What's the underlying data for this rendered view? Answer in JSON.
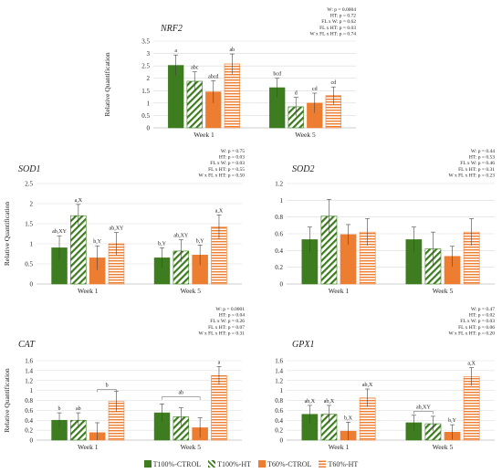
{
  "legend": [
    {
      "name": "T100%-CTROL",
      "color": "#3d7d1f",
      "pattern": "solid"
    },
    {
      "name": "T100%-HT",
      "color": "#3d7d1f",
      "pattern": "diagonal"
    },
    {
      "name": "T60%-CTROL",
      "color": "#ed7d31",
      "pattern": "solid"
    },
    {
      "name": "T60%-HT",
      "color": "#ed7d31",
      "pattern": "horizontal"
    }
  ],
  "chart_data": [
    {
      "type": "bar",
      "title": "NRF2",
      "ylabel": "Relative Quantification",
      "categories": [
        "Week 1",
        "Week 5"
      ],
      "ylim": [
        0,
        3.5
      ],
      "yticks": [
        "0",
        "0.5",
        "1",
        "1.5",
        "2",
        "2.5",
        "3",
        "3.5"
      ],
      "series": [
        {
          "name": "T100%-CTROL",
          "values": [
            2.52,
            1.62
          ],
          "errors": [
            0.42,
            0.38
          ],
          "labels": [
            "a",
            "bcd"
          ]
        },
        {
          "name": "T100%-HT",
          "values": [
            1.88,
            0.85
          ],
          "errors": [
            0.38,
            0.38
          ],
          "labels": [
            "abc",
            "d"
          ]
        },
        {
          "name": "T60%-CTROL",
          "values": [
            1.45,
            1.0
          ],
          "errors": [
            0.45,
            0.4
          ],
          "labels": [
            "abcd",
            "cd"
          ]
        },
        {
          "name": "T60%-HT",
          "values": [
            2.58,
            1.3
          ],
          "errors": [
            0.4,
            0.35
          ],
          "labels": [
            "ab",
            "cd"
          ]
        }
      ],
      "stats": [
        "W: p = 0.0004",
        "HT: p = 0.72",
        "FL x W: p = 0.62",
        "FL x HT: p = 0.03",
        "W x FL x HT: p = 0.74"
      ],
      "brackets": []
    },
    {
      "type": "bar",
      "title": "SOD1",
      "ylabel": "Relative Quantification",
      "categories": [
        "Week 1",
        "Week 5"
      ],
      "ylim": [
        0,
        2.5
      ],
      "yticks": [
        "0",
        "0.5",
        "1",
        "1.5",
        "2",
        "2.5"
      ],
      "series": [
        {
          "name": "T100%-CTROL",
          "values": [
            0.9,
            0.65
          ],
          "errors": [
            0.3,
            0.25
          ],
          "labels": [
            "ab,XY",
            "b,Y"
          ]
        },
        {
          "name": "T100%-HT",
          "values": [
            1.7,
            0.82
          ],
          "errors": [
            0.28,
            0.28
          ],
          "labels": [
            "a,X",
            "ab,XY"
          ]
        },
        {
          "name": "T60%-CTROL",
          "values": [
            0.65,
            0.72
          ],
          "errors": [
            0.3,
            0.25
          ],
          "labels": [
            "b,Y",
            "b,Y"
          ]
        },
        {
          "name": "T60%-HT",
          "values": [
            1.0,
            1.42
          ],
          "errors": [
            0.28,
            0.3
          ],
          "labels": [
            "ab,XY",
            "a,X"
          ]
        }
      ],
      "stats": [
        "W: p = 0.75",
        "HT: p = 0.03",
        "FL x W: p = 0.03",
        "FL x HT: p = 0.55",
        "W x FL x HT: p = 0.50"
      ],
      "brackets": []
    },
    {
      "type": "bar",
      "title": "SOD2",
      "ylabel": "",
      "categories": [
        "Week 1",
        "Week 5"
      ],
      "ylim": [
        0,
        1.2
      ],
      "yticks": [
        "0",
        "0.2",
        "0.4",
        "0.6",
        "0.8",
        "1",
        "1.2"
      ],
      "series": [
        {
          "name": "T100%-CTROL",
          "values": [
            0.53,
            0.53
          ],
          "errors": [
            0.15,
            0.15
          ],
          "labels": [
            "",
            ""
          ]
        },
        {
          "name": "T100%-HT",
          "values": [
            0.81,
            0.42
          ],
          "errors": [
            0.2,
            0.2
          ],
          "labels": [
            "",
            ""
          ]
        },
        {
          "name": "T60%-CTROL",
          "values": [
            0.59,
            0.33
          ],
          "errors": [
            0.12,
            0.12
          ],
          "labels": [
            "",
            ""
          ]
        },
        {
          "name": "T60%-HT",
          "values": [
            0.62,
            0.62
          ],
          "errors": [
            0.16,
            0.16
          ],
          "labels": [
            "",
            ""
          ]
        }
      ],
      "stats": [
        "W: p = 0.44",
        "HT: p = 0.53",
        "FL x W: p = 0.46",
        "FL x HT: p = 0.31",
        "W x FL x HT: p = 0.23"
      ],
      "brackets": []
    },
    {
      "type": "bar",
      "title": "CAT",
      "ylabel": "Relative Quantification",
      "categories": [
        "Week 1",
        "Week 5"
      ],
      "ylim": [
        0,
        1.6
      ],
      "yticks": [
        "0",
        "0.2",
        "0.4",
        "0.6",
        "0.8",
        "1",
        "1.2",
        "1.4",
        "1.6"
      ],
      "series": [
        {
          "name": "T100%-CTROL",
          "values": [
            0.4,
            0.55
          ],
          "errors": [
            0.15,
            0.18
          ],
          "labels": [
            "b",
            ""
          ]
        },
        {
          "name": "T100%-HT",
          "values": [
            0.4,
            0.47
          ],
          "errors": [
            0.15,
            0.18
          ],
          "labels": [
            "ab",
            ""
          ]
        },
        {
          "name": "T60%-CTROL",
          "values": [
            0.15,
            0.25
          ],
          "errors": [
            0.2,
            0.2
          ],
          "labels": [
            "",
            ""
          ]
        },
        {
          "name": "T60%-HT",
          "values": [
            0.78,
            1.3
          ],
          "errors": [
            0.2,
            0.18
          ],
          "labels": [
            "",
            "a"
          ]
        }
      ],
      "stats": [
        "W: p = 0.0001",
        "HT: p = 0.04",
        "FL x W: p = 0.26",
        "FL x HT: p = 0.07",
        "W x FL x HT: p = 0.31"
      ],
      "brackets": [
        {
          "label": "b",
          "week": 0,
          "from": 2,
          "to": 3,
          "y": 1.02
        },
        {
          "label": "ab",
          "week": 1,
          "from": 0,
          "to": 2,
          "y": 0.87
        }
      ]
    },
    {
      "type": "bar",
      "title": "GPX1",
      "ylabel": "",
      "categories": [
        "Week 1",
        "Week 5"
      ],
      "ylim": [
        0,
        1.6
      ],
      "yticks": [
        "0",
        "0.2",
        "0.4",
        "0.6",
        "0.8",
        "1",
        "1.2",
        "1.4",
        "1.6"
      ],
      "series": [
        {
          "name": "T100%-CTROL",
          "values": [
            0.52,
            0.35
          ],
          "errors": [
            0.18,
            0.15
          ],
          "labels": [
            "ab,X",
            ""
          ]
        },
        {
          "name": "T100%-HT",
          "values": [
            0.52,
            0.33
          ],
          "errors": [
            0.18,
            0.15
          ],
          "labels": [
            "ab,X",
            ""
          ]
        },
        {
          "name": "T60%-CTROL",
          "values": [
            0.18,
            0.16
          ],
          "errors": [
            0.18,
            0.15
          ],
          "labels": [
            "b,X",
            "b,Y"
          ]
        },
        {
          "name": "T60%-HT",
          "values": [
            0.85,
            1.28
          ],
          "errors": [
            0.18,
            0.18
          ],
          "labels": [
            "ab,X",
            "a,X"
          ]
        }
      ],
      "stats": [
        "W: p = 0.47",
        "HT: p = 0.02",
        "FL x W: p = 0.03",
        "FL x HT: p = 0.06",
        "W x FL x HT: p = 0.20"
      ],
      "brackets": [
        {
          "label": "ab,XY",
          "week": 1,
          "from": 0,
          "to": 1,
          "y": 0.58
        }
      ]
    }
  ]
}
